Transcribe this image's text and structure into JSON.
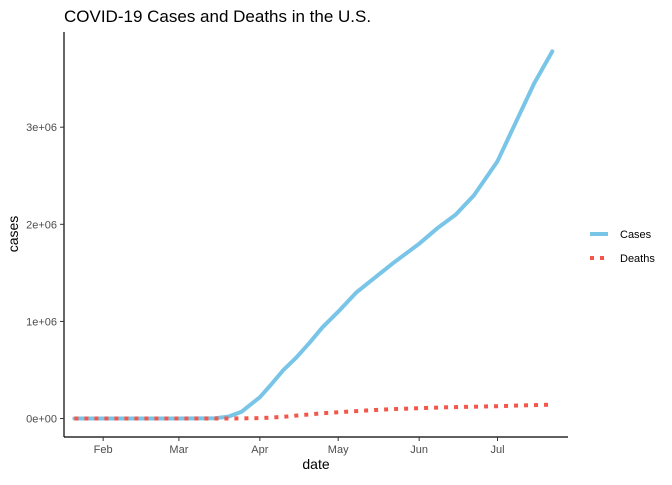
{
  "chart_data": {
    "type": "line",
    "title": "COVID-19 Cases and Deaths in the U.S.",
    "xlabel": "date",
    "ylabel": "cases",
    "x_tick_labels": [
      "Feb",
      "Mar",
      "Apr",
      "May",
      "Jun",
      "Jul"
    ],
    "x_tick_dates": [
      "2020-02-01",
      "2020-03-01",
      "2020-04-01",
      "2020-05-01",
      "2020-06-01",
      "2020-07-01"
    ],
    "y_tick_labels": [
      "0e+00",
      "1e+06",
      "2e+06",
      "3e+06"
    ],
    "y_tick_values": [
      0,
      1000000,
      2000000,
      3000000
    ],
    "xlim": [
      "2020-01-17",
      "2020-07-28"
    ],
    "ylim": [
      -190000,
      3980000
    ],
    "grid": false,
    "legend_position": "right",
    "x": [
      "2020-01-21",
      "2020-02-01",
      "2020-02-15",
      "2020-03-01",
      "2020-03-10",
      "2020-03-15",
      "2020-03-20",
      "2020-03-25",
      "2020-04-01",
      "2020-04-05",
      "2020-04-10",
      "2020-04-15",
      "2020-04-20",
      "2020-04-25",
      "2020-05-01",
      "2020-05-08",
      "2020-05-15",
      "2020-05-22",
      "2020-06-01",
      "2020-06-08",
      "2020-06-15",
      "2020-06-22",
      "2020-07-01",
      "2020-07-08",
      "2020-07-15",
      "2020-07-22"
    ],
    "series": [
      {
        "name": "Cases",
        "color": "#79C5E8",
        "style": "solid",
        "values": [
          1,
          8,
          15,
          75,
          1000,
          3500,
          20000,
          70000,
          220000,
          340000,
          500000,
          630000,
          780000,
          940000,
          1100000,
          1300000,
          1450000,
          1600000,
          1800000,
          1960000,
          2100000,
          2300000,
          2650000,
          3050000,
          3450000,
          3780000
        ]
      },
      {
        "name": "Deaths",
        "color": "#F4574A",
        "style": "dotted",
        "values": [
          0,
          0,
          0,
          1,
          30,
          90,
          300,
          1100,
          5000,
          9600,
          18000,
          30000,
          43000,
          54000,
          65000,
          77000,
          88000,
          97000,
          107000,
          113000,
          118000,
          122000,
          127000,
          133000,
          138000,
          144000
        ]
      }
    ]
  }
}
